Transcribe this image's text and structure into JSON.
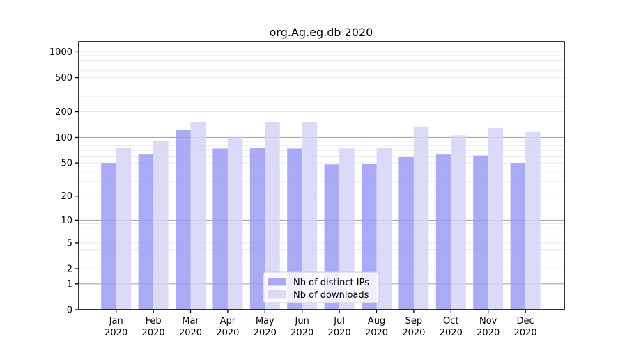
{
  "chart_data": {
    "type": "bar",
    "title": "org.Ag.eg.db 2020",
    "categories": [
      "Jan",
      "Feb",
      "Mar",
      "Apr",
      "May",
      "Jun",
      "Jul",
      "Aug",
      "Sep",
      "Oct",
      "Nov",
      "Dec"
    ],
    "x_tick_second_line": "2020",
    "series": [
      {
        "name": "Nb of distinct IPs",
        "color": "#9b9bf3",
        "values": [
          50,
          64,
          122,
          74,
          76,
          74,
          48,
          49,
          59,
          64,
          61,
          50
        ]
      },
      {
        "name": "Nb of downloads",
        "color": "#d5d5f7",
        "values": [
          75,
          92,
          153,
          100,
          152,
          152,
          74,
          76,
          134,
          106,
          129,
          118
        ]
      }
    ],
    "y_ticks": [
      0,
      1,
      2,
      5,
      10,
      20,
      50,
      100,
      200,
      500,
      1000
    ],
    "y_scale": "log10(1+v)",
    "ylim": [
      0,
      1300
    ],
    "xlabel": "",
    "ylabel": "",
    "grid": true,
    "major_gridline_values": [
      1,
      10,
      100,
      1000
    ],
    "legend_position": "lower-center",
    "colors": {
      "major_gridline": "#ababab",
      "minor_gridline": "#ebebeb",
      "axis_frame": "#000000",
      "legend_border": "#cccccc",
      "legend_background": "#ffffff"
    }
  }
}
